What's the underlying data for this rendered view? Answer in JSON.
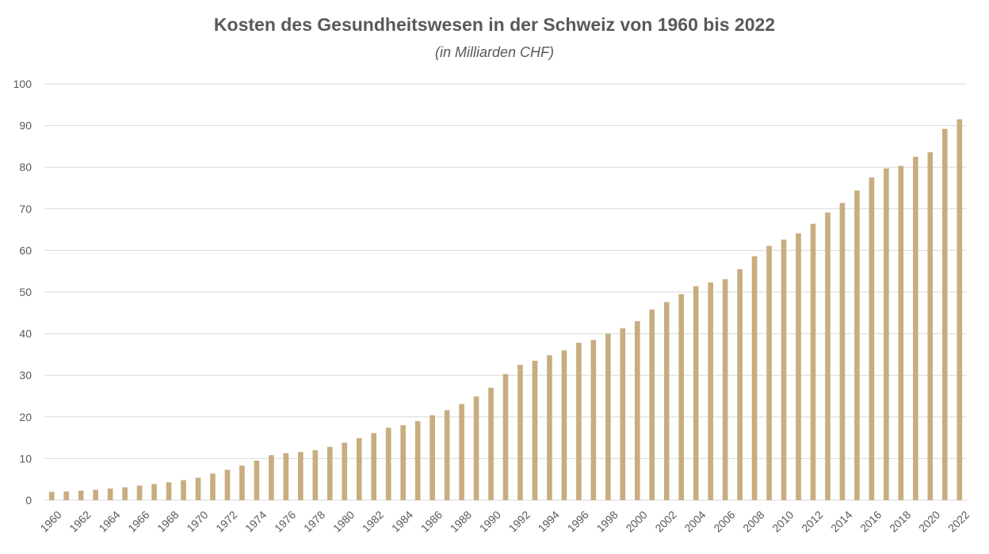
{
  "colors": {
    "bar": "#c8ad80",
    "grid": "#d9d9d9",
    "text": "#595959"
  },
  "chart_data": {
    "type": "bar",
    "title": "Kosten des Gesundheitswesen in der Schweiz von 1960 bis 2022",
    "subtitle": "(in Milliarden CHF)",
    "xlabel": "",
    "ylabel": "",
    "ylim": [
      0,
      100
    ],
    "yticks": [
      0,
      10,
      20,
      30,
      40,
      50,
      60,
      70,
      80,
      90,
      100
    ],
    "grid": true,
    "categories": [
      "1960",
      "1961",
      "1962",
      "1963",
      "1964",
      "1965",
      "1966",
      "1967",
      "1968",
      "1969",
      "1970",
      "1971",
      "1972",
      "1973",
      "1974",
      "1975",
      "1976",
      "1977",
      "1978",
      "1979",
      "1980",
      "1981",
      "1982",
      "1983",
      "1984",
      "1985",
      "1986",
      "1987",
      "1988",
      "1989",
      "1990",
      "1991",
      "1992",
      "1993",
      "1994",
      "1995",
      "1996",
      "1997",
      "1998",
      "1999",
      "2000",
      "2001",
      "2002",
      "2003",
      "2004",
      "2005",
      "2006",
      "2007",
      "2008",
      "2009",
      "2010",
      "2011",
      "2012",
      "2013",
      "2014",
      "2015",
      "2016",
      "2017",
      "2018",
      "2019",
      "2020",
      "2021",
      "2022"
    ],
    "xtick_labels": [
      "1960",
      "1962",
      "1964",
      "1966",
      "1968",
      "1970",
      "1972",
      "1974",
      "1976",
      "1978",
      "1980",
      "1982",
      "1984",
      "1986",
      "1988",
      "1990",
      "1992",
      "1994",
      "1996",
      "1998",
      "2000",
      "2002",
      "2004",
      "2006",
      "2008",
      "2010",
      "2012",
      "2014",
      "2016",
      "2018",
      "2020",
      "2022"
    ],
    "values": [
      2.0,
      2.1,
      2.3,
      2.5,
      2.8,
      3.1,
      3.5,
      3.9,
      4.3,
      4.8,
      5.4,
      6.4,
      7.3,
      8.3,
      9.5,
      10.8,
      11.3,
      11.6,
      12.0,
      12.8,
      13.8,
      14.9,
      16.1,
      17.4,
      18.0,
      19.0,
      20.4,
      21.6,
      23.1,
      24.9,
      27.0,
      30.3,
      32.5,
      33.5,
      34.8,
      36.0,
      37.8,
      38.5,
      40.0,
      41.3,
      43.0,
      45.8,
      47.6,
      49.5,
      51.4,
      52.3,
      53.1,
      55.5,
      58.6,
      61.1,
      62.6,
      64.1,
      66.4,
      69.1,
      71.4,
      74.4,
      77.5,
      79.7,
      80.3,
      82.5,
      83.6,
      89.2,
      91.5
    ]
  }
}
